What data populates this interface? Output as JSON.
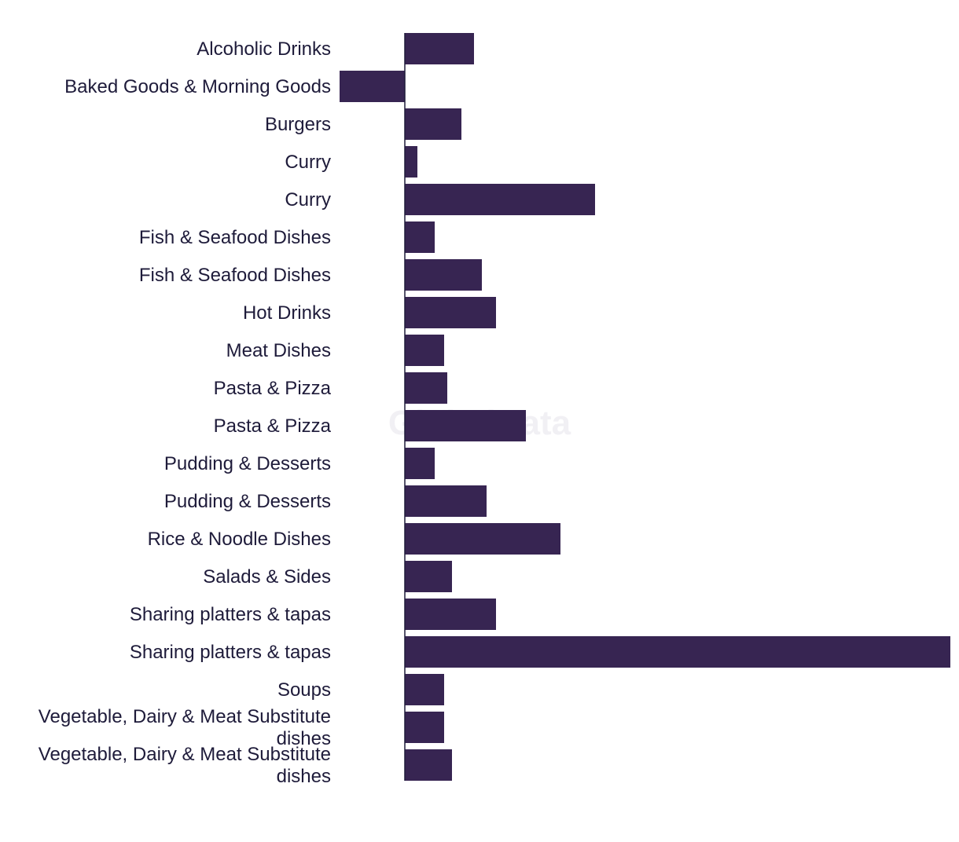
{
  "watermark": "GlobalData",
  "chart_data": {
    "type": "bar",
    "orientation": "horizontal",
    "categories": [
      "Alcoholic Drinks",
      "Baked Goods & Morning Goods",
      "Burgers",
      "Curry",
      "Curry",
      "Fish & Seafood Dishes",
      "Fish & Seafood Dishes",
      "Hot Drinks",
      "Meat Dishes",
      "Pasta & Pizza",
      "Pasta & Pizza",
      "Pudding & Desserts",
      "Pudding & Desserts",
      "Rice & Noodle Dishes",
      "Salads & Sides",
      "Sharing platters & tapas",
      "Sharing platters & tapas",
      "Soups",
      "Vegetable, Dairy & Meat Substitute dishes",
      "Vegetable, Dairy & Meat Substitute dishes"
    ],
    "values": [
      88,
      -83,
      72,
      16,
      242,
      38,
      98,
      116,
      50,
      54,
      154,
      38,
      104,
      198,
      60,
      116,
      694,
      50,
      50,
      60
    ],
    "bar_color": "#372552",
    "xlim": [
      -84,
      694
    ],
    "grid": false,
    "legend": "none"
  }
}
